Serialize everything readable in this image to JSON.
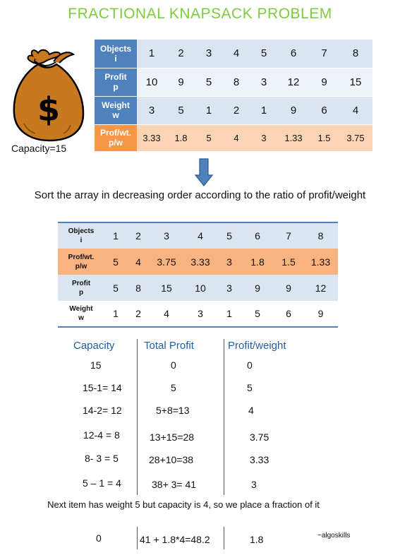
{
  "title": "FRACTIONAL KNAPSACK PROBLEM",
  "capacity_label": "Capacity=15",
  "table1": {
    "rows": [
      {
        "label": "Objects i",
        "values": [
          "1",
          "2",
          "3",
          "4",
          "5",
          "6",
          "7",
          "8"
        ]
      },
      {
        "label": "Profit p",
        "values": [
          "10",
          "9",
          "5",
          "8",
          "3",
          "12",
          "9",
          "15"
        ]
      },
      {
        "label": "Weight w",
        "values": [
          "3",
          "5",
          "1",
          "2",
          "1",
          "9",
          "6",
          "4"
        ]
      },
      {
        "label": "Prof/wt. p/w",
        "values": [
          "3.33",
          "1.8",
          "5",
          "4",
          "3",
          "1.33",
          "1.5",
          "3.75"
        ]
      }
    ]
  },
  "sort_text": "Sort the array in decreasing order according to the ratio of profit/weight",
  "table2": {
    "rows": [
      {
        "label": "Objects i",
        "values": [
          "1",
          "2",
          "3",
          "4",
          "5",
          "6",
          "7",
          "8"
        ]
      },
      {
        "label": "Prof/wt. p/w",
        "values": [
          "5",
          "4",
          "3.75",
          "3.33",
          "3",
          "1.8",
          "1.5",
          "1.33"
        ]
      },
      {
        "label": "Profit p",
        "values": [
          "5",
          "8",
          "15",
          "10",
          "3",
          "9",
          "9",
          "12"
        ]
      },
      {
        "label": "Weight w",
        "values": [
          "1",
          "2",
          "4",
          "3",
          "1",
          "5",
          "6",
          "9"
        ]
      }
    ]
  },
  "calc": {
    "headers": [
      "Capacity",
      "Total Profit",
      "Profit/weight"
    ],
    "rows": [
      [
        "15",
        "0",
        "0"
      ],
      [
        "15-1= 14",
        "5",
        "5"
      ],
      [
        "14-2= 12",
        "5+8=13",
        "4"
      ],
      [
        "12-4 = 8",
        "13+15=28",
        "3.75"
      ],
      [
        "8- 3 = 5",
        "28+10=38",
        "3.33"
      ],
      [
        "5 – 1 = 4",
        "38+ 3= 41",
        "3"
      ]
    ],
    "note": "Next item has weight 5 but capacity is 4, so we place a fraction of it",
    "final_row": [
      "0",
      "41 + 1.8*4=48.2",
      "1.8"
    ]
  },
  "credit": "~algoskills",
  "colors": {
    "title": "#7ecb3f",
    "header_blue": "#4f81bd",
    "cell_blue": "#dbe5f1",
    "header_orange": "#f79646",
    "cell_orange": "#fbd4b4",
    "column_head_text": "#1f5fa0",
    "arrow": "#4f81bd",
    "bag": "#c8791f"
  },
  "icons": [
    "money-bag-icon",
    "down-arrow-icon"
  ]
}
